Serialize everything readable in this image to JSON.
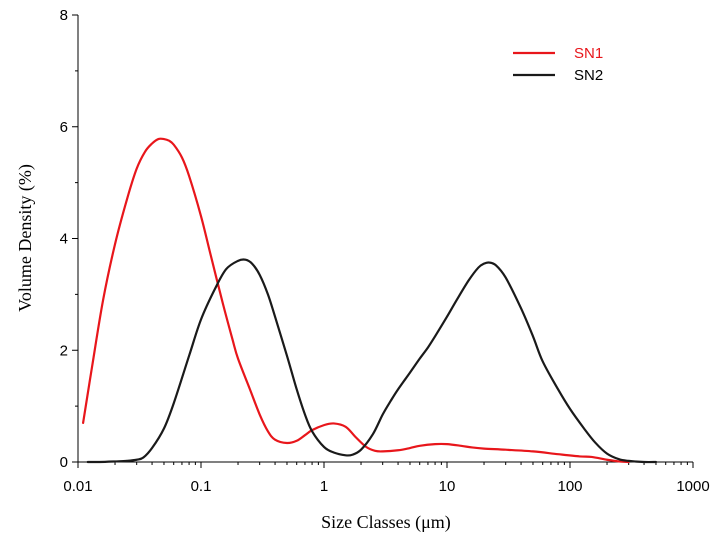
{
  "chart_data": {
    "type": "line",
    "title": "",
    "xlabel": "Size Classes (μm)",
    "ylabel": "Volume Density (%)",
    "xscale": "log",
    "xlim": [
      0.01,
      1000
    ],
    "ylim": [
      0,
      8
    ],
    "x_ticks": [
      "0.01",
      "0.1",
      "1",
      "10",
      "100",
      "1000"
    ],
    "y_ticks": [
      "0",
      "2",
      "4",
      "6",
      "8"
    ],
    "legend_position": "top-right",
    "grid": false,
    "series": [
      {
        "name": "SN1",
        "color": "#e8161b",
        "x": [
          0.011,
          0.013,
          0.016,
          0.02,
          0.025,
          0.03,
          0.035,
          0.04,
          0.045,
          0.05,
          0.055,
          0.06,
          0.07,
          0.08,
          0.1,
          0.12,
          0.15,
          0.18,
          0.2,
          0.25,
          0.3,
          0.35,
          0.4,
          0.5,
          0.6,
          0.7,
          0.8,
          1.0,
          1.2,
          1.5,
          1.8,
          2.2,
          2.6,
          3.0,
          4.0,
          5.0,
          6.0,
          8.0,
          10,
          13,
          16,
          20,
          30,
          50,
          80,
          120,
          150,
          200,
          250,
          300
        ],
        "y": [
          0.7,
          1.7,
          2.9,
          3.9,
          4.7,
          5.25,
          5.55,
          5.7,
          5.78,
          5.78,
          5.75,
          5.68,
          5.45,
          5.12,
          4.4,
          3.7,
          2.85,
          2.2,
          1.85,
          1.3,
          0.85,
          0.55,
          0.4,
          0.34,
          0.38,
          0.48,
          0.57,
          0.66,
          0.69,
          0.63,
          0.45,
          0.27,
          0.2,
          0.19,
          0.21,
          0.25,
          0.29,
          0.32,
          0.32,
          0.29,
          0.26,
          0.24,
          0.22,
          0.19,
          0.14,
          0.1,
          0.09,
          0.04,
          0.01,
          0.0
        ]
      },
      {
        "name": "SN2",
        "color": "#1a1a1a",
        "x": [
          0.012,
          0.015,
          0.02,
          0.025,
          0.03,
          0.034,
          0.04,
          0.05,
          0.06,
          0.08,
          0.1,
          0.13,
          0.16,
          0.2,
          0.23,
          0.26,
          0.3,
          0.35,
          0.4,
          0.5,
          0.6,
          0.7,
          0.8,
          1.0,
          1.2,
          1.5,
          1.7,
          2.0,
          2.5,
          3.0,
          3.5,
          4.0,
          5.0,
          6.0,
          7.0,
          8.0,
          10,
          12,
          15,
          18,
          20,
          22,
          25,
          30,
          40,
          50,
          60,
          80,
          100,
          130,
          160,
          200,
          250,
          300,
          400,
          500
        ],
        "y": [
          0.0,
          0.0,
          0.01,
          0.02,
          0.04,
          0.08,
          0.25,
          0.6,
          1.05,
          1.9,
          2.55,
          3.1,
          3.45,
          3.6,
          3.62,
          3.55,
          3.35,
          3.0,
          2.6,
          1.9,
          1.3,
          0.85,
          0.55,
          0.27,
          0.17,
          0.12,
          0.13,
          0.22,
          0.5,
          0.85,
          1.1,
          1.3,
          1.6,
          1.85,
          2.05,
          2.25,
          2.6,
          2.9,
          3.25,
          3.48,
          3.55,
          3.57,
          3.52,
          3.3,
          2.75,
          2.25,
          1.8,
          1.3,
          0.95,
          0.6,
          0.35,
          0.15,
          0.05,
          0.02,
          0.0,
          0.0
        ]
      }
    ]
  }
}
